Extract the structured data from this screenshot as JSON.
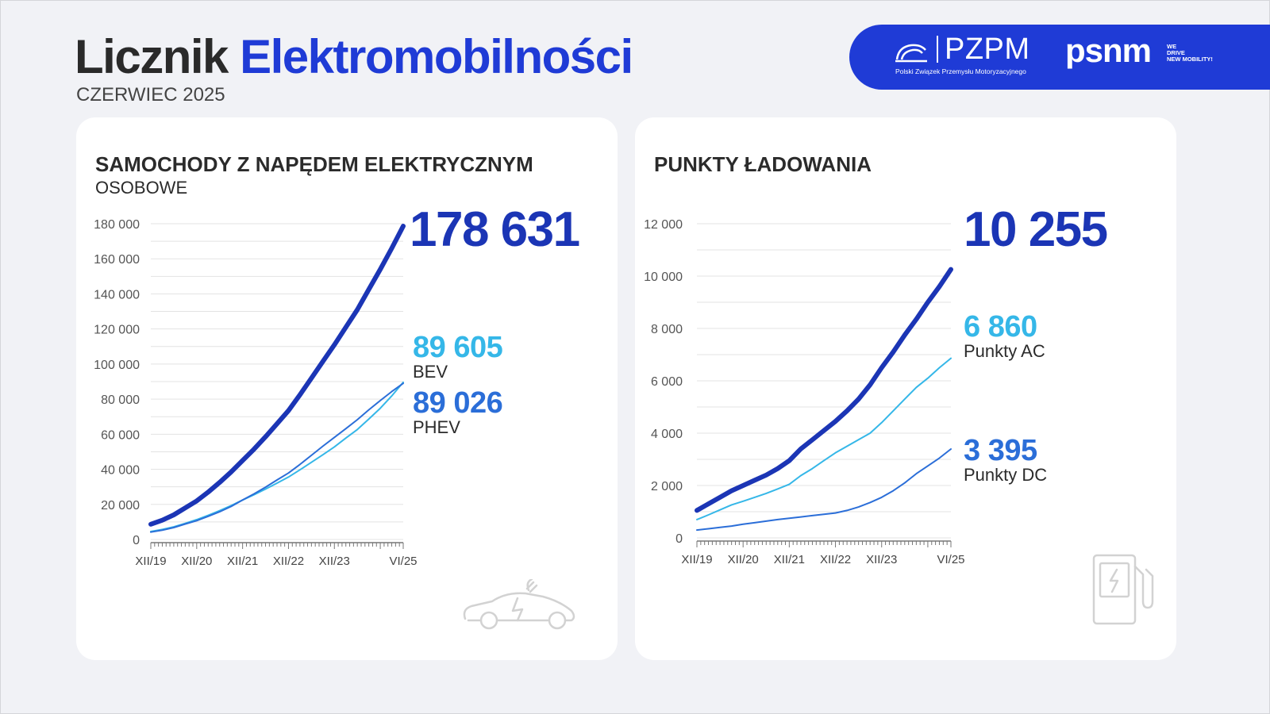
{
  "header": {
    "title_part1": "Licznik",
    "title_part2": "Elektromobilności",
    "subtitle": "CZERWIEC 2025"
  },
  "logos": {
    "pzpm": "PZPM",
    "pzpm_sub": "Polski Związek Przemysłu Motoryzacyjnego",
    "psnm": "psnm",
    "psnm_tag": [
      "WE",
      "DRIVE",
      "NEW MOBILITY!"
    ]
  },
  "colors": {
    "brand_blue": "#1f3bd6",
    "total_line": "#1b35b5",
    "light_line": "#35b7e8",
    "mid_line": "#2b6ed8"
  },
  "icons": {
    "left_card": "electric-car-icon",
    "right_card": "charging-station-icon"
  },
  "chart_data": [
    {
      "type": "line",
      "title": "SAMOCHODY Z NAPĘDEM ELEKTRYCZNYM",
      "subtitle": "OSOBOWE",
      "ylim": [
        0,
        180000
      ],
      "yticks": [
        0,
        20000,
        40000,
        60000,
        80000,
        100000,
        120000,
        140000,
        160000,
        180000
      ],
      "ytick_labels": [
        "0",
        "20 000",
        "40 000",
        "60 000",
        "80 000",
        "100 000",
        "120 000",
        "140 000",
        "160 000",
        "180 000"
      ],
      "xtick_labels": [
        "XII/19",
        "XII/20",
        "XII/21",
        "XII/22",
        "XII/23",
        "VI/25"
      ],
      "x": [
        "XII/19",
        "III/20",
        "VI/20",
        "IX/20",
        "XII/20",
        "III/21",
        "VI/21",
        "IX/21",
        "XII/21",
        "III/22",
        "VI/22",
        "IX/22",
        "XII/22",
        "III/23",
        "VI/23",
        "IX/23",
        "XII/23",
        "III/24",
        "VI/24",
        "IX/24",
        "XII/24",
        "III/25",
        "VI/25"
      ],
      "grid": true,
      "series": [
        {
          "role": "total",
          "big_label": "178 631",
          "caption": "",
          "color": "#1b35b5",
          "values": [
            8700,
            11000,
            14000,
            18000,
            22000,
            27000,
            32500,
            38500,
            45000,
            51500,
            58500,
            66000,
            73500,
            82500,
            92000,
            101500,
            111000,
            121000,
            131000,
            142500,
            154000,
            166000,
            178631
          ]
        },
        {
          "role": "bev",
          "big_label": "89 605",
          "caption": "BEV",
          "color": "#35b7e8",
          "values": [
            4500,
            5700,
            7200,
            9200,
            11300,
            13800,
            16400,
            19300,
            22500,
            25500,
            28700,
            32100,
            35600,
            39700,
            44000,
            48300,
            52800,
            57800,
            62700,
            68600,
            74800,
            81800,
            89605
          ]
        },
        {
          "role": "phev",
          "big_label": "89 026",
          "caption": "PHEV",
          "color": "#2b6ed8",
          "values": [
            4200,
            5300,
            6800,
            8800,
            10700,
            13200,
            15800,
            18800,
            22500,
            26000,
            29800,
            33900,
            37900,
            42800,
            48000,
            53200,
            58200,
            63200,
            68300,
            73900,
            79200,
            84300,
            89026
          ]
        }
      ]
    },
    {
      "type": "line",
      "title": "PUNKTY ŁADOWANIA",
      "ylim": [
        0,
        12000
      ],
      "yticks": [
        0,
        2000,
        4000,
        6000,
        8000,
        10000,
        12000
      ],
      "ytick_labels": [
        "0",
        "2 000",
        "4 000",
        "6 000",
        "8 000",
        "10 000",
        "12 000"
      ],
      "xtick_labels": [
        "XII/19",
        "XII/20",
        "XII/21",
        "XII/22",
        "XII/23",
        "VI/25"
      ],
      "x": [
        "XII/19",
        "III/20",
        "VI/20",
        "IX/20",
        "XII/20",
        "III/21",
        "VI/21",
        "IX/21",
        "XII/21",
        "III/22",
        "VI/22",
        "IX/22",
        "XII/22",
        "III/23",
        "VI/23",
        "IX/23",
        "XII/23",
        "III/24",
        "VI/24",
        "IX/24",
        "XII/24",
        "III/25",
        "VI/25"
      ],
      "grid": true,
      "series": [
        {
          "role": "total",
          "big_label": "10 255",
          "caption": "",
          "color": "#1b35b5",
          "values": [
            1050,
            1300,
            1550,
            1800,
            2000,
            2200,
            2400,
            2650,
            2950,
            3400,
            3750,
            4100,
            4450,
            4850,
            5300,
            5850,
            6500,
            7100,
            7750,
            8350,
            9000,
            9600,
            10255
          ]
        },
        {
          "role": "ac",
          "big_label": "6 860",
          "caption": "Punkty AC",
          "color": "#35b7e8",
          "values": [
            700,
            880,
            1070,
            1260,
            1400,
            1550,
            1700,
            1870,
            2050,
            2380,
            2650,
            2950,
            3250,
            3500,
            3750,
            4000,
            4400,
            4850,
            5300,
            5750,
            6100,
            6500,
            6860
          ]
        },
        {
          "role": "dc",
          "big_label": "3 395",
          "caption": "Punkty DC",
          "color": "#2b6ed8",
          "values": [
            300,
            350,
            400,
            450,
            520,
            580,
            640,
            700,
            750,
            800,
            850,
            900,
            950,
            1050,
            1180,
            1350,
            1550,
            1800,
            2100,
            2450,
            2750,
            3050,
            3395
          ]
        }
      ]
    }
  ]
}
